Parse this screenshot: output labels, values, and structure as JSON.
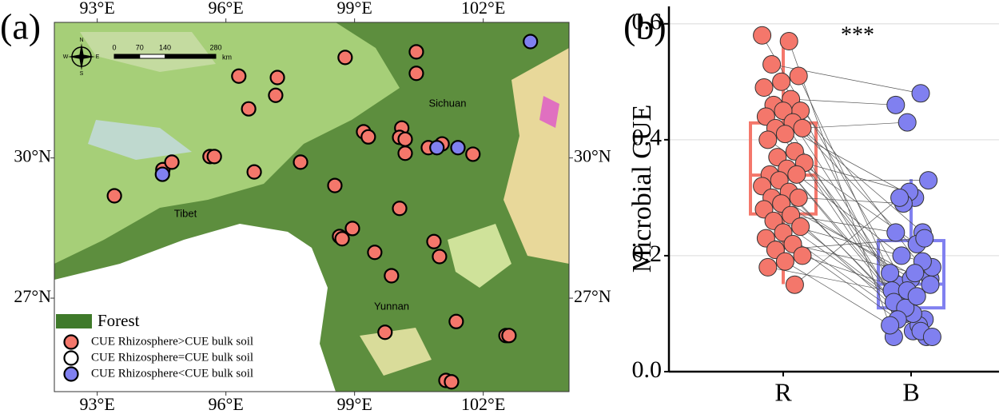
{
  "chart_data": [
    {
      "type": "map-scatter",
      "panel": "(a)",
      "xlim": [
        92,
        104
      ],
      "ylim": [
        25,
        32.9
      ],
      "xticks": [
        {
          "value": 93,
          "label": "93°E"
        },
        {
          "value": 96,
          "label": "96°E"
        },
        {
          "value": 99,
          "label": "99°E"
        },
        {
          "value": 102,
          "label": "102°E"
        }
      ],
      "yticks": [
        {
          "value": 27,
          "label": "27°N"
        },
        {
          "value": 30,
          "label": "30°N"
        }
      ],
      "region_labels": [
        "Sichuan",
        "Tibet",
        "Yunnan"
      ],
      "forest_label": "Forest",
      "compass": [
        "N",
        "S",
        "E",
        "W"
      ],
      "scale_bar": {
        "ticks": [
          0,
          70,
          140,
          280
        ],
        "unit": "km"
      },
      "series": [
        {
          "name": "CUE Rhizosphere>CUE bulk soil",
          "color": "#f4776b",
          "x": [
            93.4,
            94.53,
            94.74,
            95.63,
            95.73,
            96.66,
            97.74,
            96.3,
            97.2,
            97.16,
            96.53,
            98.78,
            100.44,
            100.44,
            98.54,
            99.21,
            99.32,
            100.1,
            100.05,
            100.18,
            100.18,
            100.72,
            101.04,
            101.76,
            100.05,
            98.95,
            98.65,
            98.71,
            99.47,
            99.86,
            100.85,
            100.98,
            101.37,
            99.71,
            102.53,
            102.6,
            101.13,
            101.26
          ],
          "y": [
            29.19,
            29.75,
            29.91,
            30.03,
            30.03,
            29.7,
            29.91,
            31.75,
            31.72,
            31.34,
            31.05,
            32.15,
            32.27,
            31.81,
            29.41,
            30.56,
            30.45,
            30.64,
            30.44,
            30.4,
            30.1,
            30.22,
            30.3,
            30.08,
            28.92,
            28.49,
            28.32,
            28.27,
            27.98,
            27.48,
            28.21,
            27.89,
            26.5,
            26.27,
            26.2,
            26.2,
            25.24,
            25.21
          ]
        },
        {
          "name": "CUE Rhizosphere=CUE bulk soil",
          "color": "#ffffff",
          "x": [],
          "y": []
        },
        {
          "name": "CUE Rhizosphere<CUE bulk soil",
          "color": "#8080f0",
          "x": [
            94.52,
            100.92,
            101.41,
            103.1
          ],
          "y": [
            29.65,
            30.22,
            30.22,
            32.49
          ]
        }
      ]
    },
    {
      "type": "paired-box",
      "panel": "(b)",
      "categories": [
        "R",
        "B"
      ],
      "colors": [
        "#f4776b",
        "#8080f0"
      ],
      "ylabel": "Microbial CUE",
      "annotation": "***",
      "ylim": [
        0,
        0.63
      ],
      "yticks": [
        {
          "value": 0,
          "label": "0.0"
        },
        0.2,
        0.4,
        0.6
      ],
      "grid": true,
      "box": [
        {
          "whislo": 0.151,
          "q1": 0.272,
          "med": 0.339,
          "q3": 0.429,
          "whishi": 0.579
        },
        {
          "whislo": 0.061,
          "q1": 0.11,
          "med": 0.151,
          "q3": 0.226,
          "whishi": 0.332
        }
      ],
      "values": [
        [
          0.58,
          0.57,
          0.53,
          0.51,
          0.5,
          0.49,
          0.47,
          0.46,
          0.45,
          0.45,
          0.44,
          0.43,
          0.42,
          0.42,
          0.41,
          0.4,
          0.38,
          0.37,
          0.36,
          0.35,
          0.34,
          0.34,
          0.33,
          0.32,
          0.31,
          0.3,
          0.3,
          0.29,
          0.28,
          0.27,
          0.26,
          0.25,
          0.24,
          0.23,
          0.22,
          0.21,
          0.2,
          0.19,
          0.18,
          0.15
        ],
        [
          0.13,
          0.06,
          0.48,
          0.12,
          0.16,
          0.07,
          0.46,
          0.24,
          0.1,
          0.18,
          0.3,
          0.15,
          0.09,
          0.43,
          0.17,
          0.22,
          0.11,
          0.06,
          0.31,
          0.14,
          0.08,
          0.2,
          0.33,
          0.16,
          0.12,
          0.07,
          0.29,
          0.15,
          0.1,
          0.24,
          0.19,
          0.11,
          0.06,
          0.17,
          0.09,
          0.23,
          0.14,
          0.08,
          0.13,
          0.3
        ]
      ]
    }
  ]
}
